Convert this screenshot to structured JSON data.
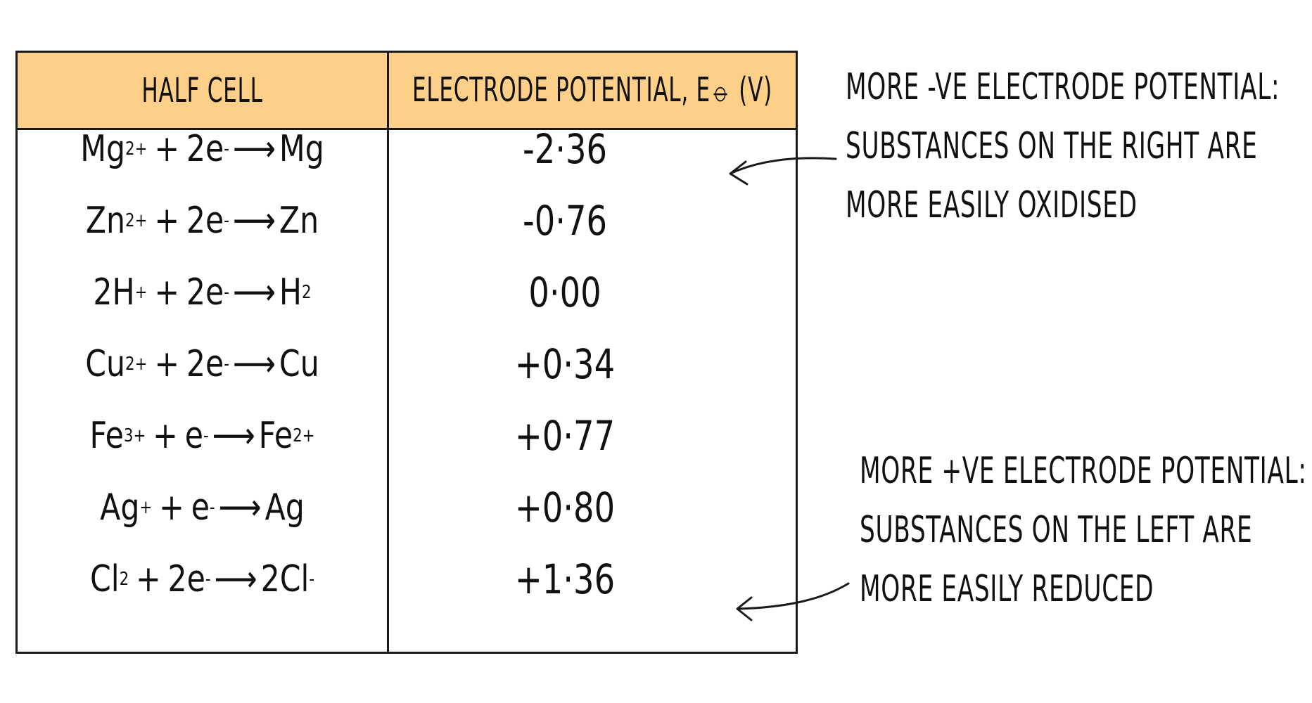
{
  "table": {
    "header": {
      "half_cell": "HALF CELL",
      "potential": "ELECTRODE POTENTIAL, E⦵ (V)"
    },
    "rows": [
      {
        "ox": "Mg",
        "ox_charge": "2+",
        "e": "2e",
        "red": "Mg",
        "red_sub": "",
        "red_charge": "",
        "ox_sub": "",
        "value": "-2·36"
      },
      {
        "ox": "Zn",
        "ox_charge": "2+",
        "e": "2e",
        "red": "Zn",
        "red_sub": "",
        "red_charge": "",
        "ox_sub": "",
        "value": "-0·76"
      },
      {
        "ox": "2H",
        "ox_charge": "+",
        "e": "2e",
        "red": "H",
        "red_sub": "2",
        "red_charge": "",
        "ox_sub": "",
        "value": "0·00"
      },
      {
        "ox": "Cu",
        "ox_charge": "2+",
        "e": "2e",
        "red": "Cu",
        "red_sub": "",
        "red_charge": "",
        "ox_sub": "",
        "value": "+0·34"
      },
      {
        "ox": "Fe",
        "ox_charge": "3+",
        "e": "e",
        "red": "Fe",
        "red_sub": "",
        "red_charge": "2+",
        "ox_sub": "",
        "value": "+0·77"
      },
      {
        "ox": "Ag",
        "ox_charge": "+",
        "e": "e",
        "red": "Ag",
        "red_sub": "",
        "red_charge": "",
        "ox_sub": "",
        "value": "+0·80"
      },
      {
        "ox": "Cl",
        "ox_charge": "",
        "e": "2e",
        "red": "2Cl",
        "red_sub": "",
        "red_charge": "-",
        "ox_sub": "2",
        "value": "+1·36"
      }
    ],
    "symbols": {
      "plus": "+",
      "electron_charge": "-",
      "arrow": "⟶"
    }
  },
  "annotations": {
    "negative": {
      "lines": [
        "MORE -VE ELECTRODE POTENTIAL:",
        "SUBSTANCES ON THE RIGHT ARE",
        "MORE EASILY OXIDISED"
      ]
    },
    "positive": {
      "lines": [
        "MORE +VE ELECTRODE POTENTIAL:",
        "SUBSTANCES ON THE LEFT ARE",
        "MORE EASILY REDUCED"
      ]
    }
  },
  "colors": {
    "header_fill": "#fdd08a",
    "ink": "#1a1a1a"
  }
}
